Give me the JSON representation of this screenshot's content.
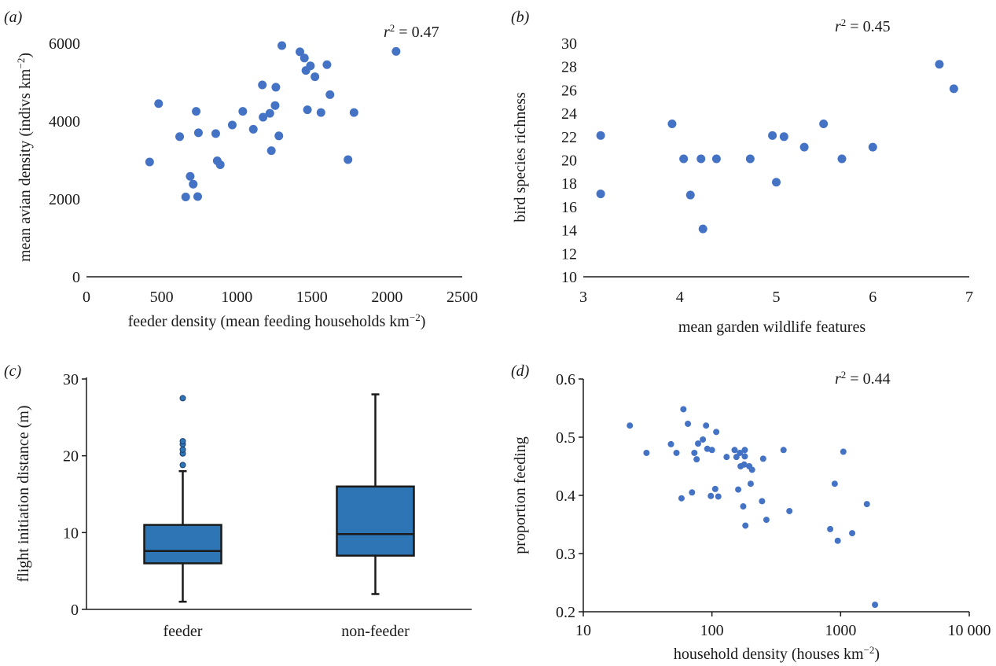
{
  "marker_color": "#4472c4",
  "box_fill": "#2e75b6",
  "chart_data": [
    {
      "panel": "(a)",
      "type": "scatter",
      "xlabel": "feeder density (mean feeding households  km",
      "xlabel_sup": "−2",
      "xlabel_end": ")",
      "ylabel": "mean avian density (indivs km",
      "ylabel_sup": "−2",
      "ylabel_end": ")",
      "annotation": {
        "prefix": "r",
        "sup": "2",
        "suffix": " = 0.47"
      },
      "xlim": [
        0,
        2500
      ],
      "ylim": [
        0,
        6000
      ],
      "xticks": [
        0,
        500,
        1000,
        1500,
        2000,
        2500
      ],
      "yticks": [
        0,
        2000,
        4000,
        6000
      ],
      "points": [
        [
          420,
          2950
        ],
        [
          480,
          4450
        ],
        [
          620,
          3600
        ],
        [
          660,
          2050
        ],
        [
          690,
          2580
        ],
        [
          710,
          2380
        ],
        [
          730,
          4250
        ],
        [
          740,
          2060
        ],
        [
          745,
          3700
        ],
        [
          860,
          3680
        ],
        [
          870,
          2980
        ],
        [
          890,
          2880
        ],
        [
          970,
          3900
        ],
        [
          1040,
          4250
        ],
        [
          1110,
          3790
        ],
        [
          1170,
          4930
        ],
        [
          1175,
          4100
        ],
        [
          1220,
          4200
        ],
        [
          1230,
          3240
        ],
        [
          1255,
          4400
        ],
        [
          1260,
          4870
        ],
        [
          1280,
          3620
        ],
        [
          1300,
          5940
        ],
        [
          1420,
          5780
        ],
        [
          1450,
          5620
        ],
        [
          1460,
          5300
        ],
        [
          1470,
          4290
        ],
        [
          1490,
          5420
        ],
        [
          1520,
          5140
        ],
        [
          1560,
          4220
        ],
        [
          1600,
          5450
        ],
        [
          1620,
          4680
        ],
        [
          1740,
          3010
        ],
        [
          1780,
          4220
        ],
        [
          2060,
          5790
        ]
      ]
    },
    {
      "panel": "(b)",
      "type": "scatter",
      "xlabel": "mean garden wildlife features",
      "ylabel": "bird species richness",
      "annotation": {
        "prefix": "r",
        "sup": "2",
        "suffix": " = 0.45"
      },
      "xlim": [
        3,
        7
      ],
      "ylim": [
        10,
        30
      ],
      "xticks": [
        3,
        4,
        5,
        6,
        7
      ],
      "yticks": [
        10,
        12,
        14,
        16,
        18,
        20,
        22,
        24,
        26,
        28,
        30
      ],
      "points": [
        [
          3.18,
          22.1
        ],
        [
          3.18,
          17.1
        ],
        [
          3.92,
          23.1
        ],
        [
          4.04,
          20.1
        ],
        [
          4.11,
          17.0
        ],
        [
          4.22,
          20.1
        ],
        [
          4.24,
          14.1
        ],
        [
          4.38,
          20.1
        ],
        [
          4.73,
          20.1
        ],
        [
          4.96,
          22.1
        ],
        [
          5.0,
          18.1
        ],
        [
          5.08,
          22.0
        ],
        [
          5.29,
          21.1
        ],
        [
          5.49,
          23.1
        ],
        [
          5.68,
          20.1
        ],
        [
          6.0,
          21.1
        ],
        [
          6.69,
          28.2
        ],
        [
          6.84,
          26.1
        ]
      ]
    },
    {
      "panel": "(c)",
      "type": "box",
      "ylabel": "flight initiation distance (m)",
      "ylim": [
        0,
        30
      ],
      "yticks": [
        0,
        10,
        20,
        30
      ],
      "categories": [
        "feeder",
        "non-feeder"
      ],
      "boxes": [
        {
          "whisker_low": 1,
          "q1": 6,
          "median": 7.6,
          "q3": 11,
          "whisker_high": 18,
          "outliers": [
            18.8,
            20.3,
            20.8,
            21.5,
            21.9,
            27.5
          ]
        },
        {
          "whisker_low": 2,
          "q1": 7,
          "median": 9.8,
          "q3": 16,
          "whisker_high": 28,
          "outliers": []
        }
      ]
    },
    {
      "panel": "(d)",
      "type": "scatter",
      "xscale": "log",
      "xlabel": "household density (houses km",
      "xlabel_sup": "−2",
      "xlabel_end": ")",
      "ylabel": "proportion feeding",
      "annotation": {
        "prefix": "r",
        "sup": "2",
        "suffix": " = 0.44"
      },
      "xlim": [
        10,
        10000
      ],
      "ylim": [
        0.2,
        0.6
      ],
      "xticks": [
        10,
        100,
        1000,
        10000
      ],
      "xtick_labels": [
        "10",
        "100",
        "1000",
        "10 000"
      ],
      "yticks": [
        0.2,
        0.3,
        0.4,
        0.5,
        0.6
      ],
      "ytick_labels": [
        "0.2",
        "0.3",
        "0.4",
        "0.5",
        "0.6"
      ],
      "points": [
        [
          23,
          0.52
        ],
        [
          31,
          0.473
        ],
        [
          48,
          0.488
        ],
        [
          53,
          0.473
        ],
        [
          58,
          0.395
        ],
        [
          60,
          0.548
        ],
        [
          65,
          0.523
        ],
        [
          70,
          0.405
        ],
        [
          73,
          0.473
        ],
        [
          76,
          0.462
        ],
        [
          78,
          0.489
        ],
        [
          85,
          0.496
        ],
        [
          90,
          0.52
        ],
        [
          92,
          0.48
        ],
        [
          98,
          0.399
        ],
        [
          100,
          0.478
        ],
        [
          106,
          0.411
        ],
        [
          108,
          0.509
        ],
        [
          112,
          0.398
        ],
        [
          130,
          0.466
        ],
        [
          150,
          0.478
        ],
        [
          155,
          0.466
        ],
        [
          160,
          0.41
        ],
        [
          165,
          0.473
        ],
        [
          167,
          0.45
        ],
        [
          175,
          0.381
        ],
        [
          178,
          0.453
        ],
        [
          180,
          0.478
        ],
        [
          180,
          0.467
        ],
        [
          182,
          0.348
        ],
        [
          195,
          0.45
        ],
        [
          200,
          0.42
        ],
        [
          205,
          0.444
        ],
        [
          245,
          0.39
        ],
        [
          250,
          0.463
        ],
        [
          265,
          0.358
        ],
        [
          360,
          0.478
        ],
        [
          400,
          0.373
        ],
        [
          830,
          0.342
        ],
        [
          900,
          0.42
        ],
        [
          950,
          0.322
        ],
        [
          1050,
          0.475
        ],
        [
          1230,
          0.335
        ],
        [
          1600,
          0.385
        ],
        [
          1850,
          0.212
        ]
      ]
    }
  ]
}
